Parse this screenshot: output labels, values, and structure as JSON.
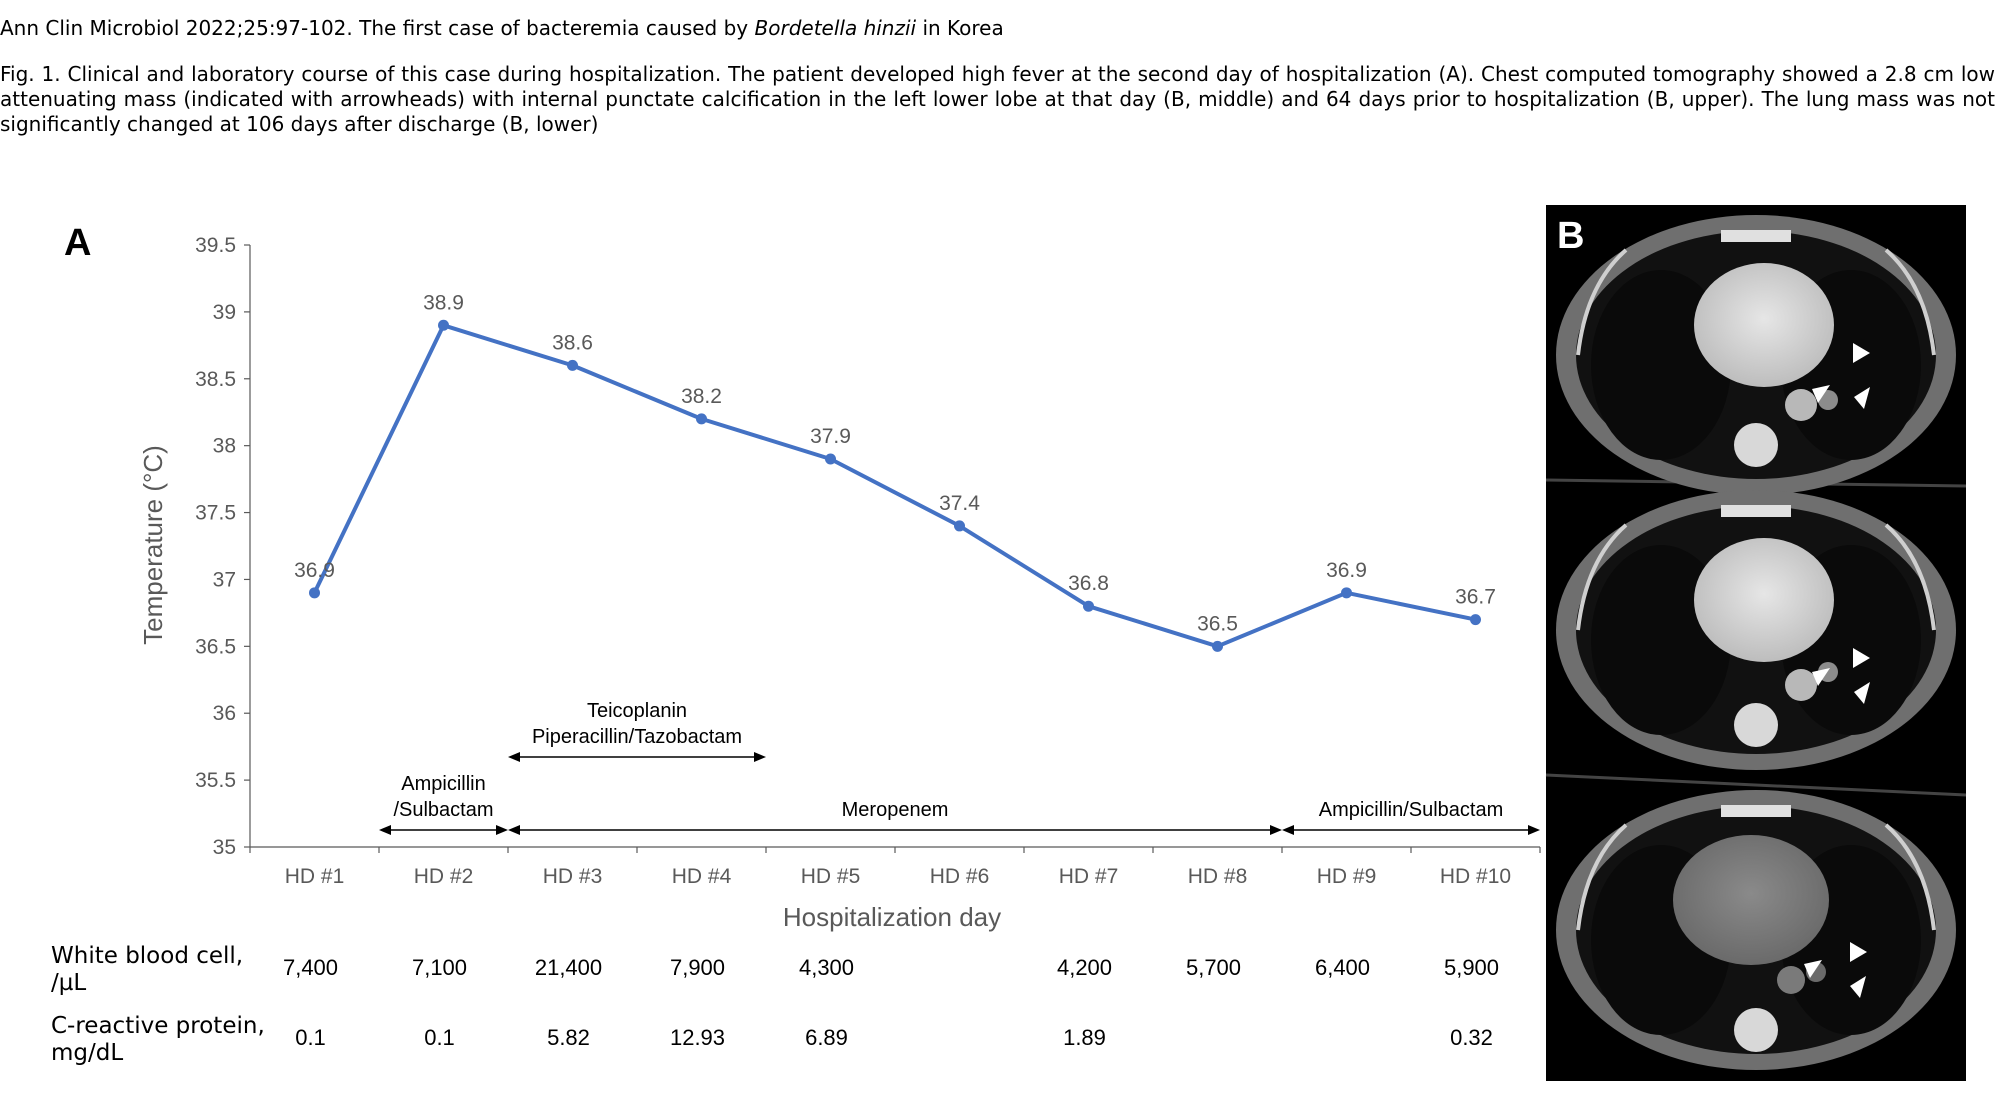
{
  "citation": {
    "prefix": "Ann Clin Microbiol 2022;25:97-102. The first case of bacteremia caused by ",
    "organism": "Bordetella hinzii",
    "suffix": " in Korea"
  },
  "caption": "Fig. 1. Clinical and laboratory course of this case during hospitalization. The patient developed high fever at the second day of hospitalization (A). Chest computed tomography showed a 2.8 cm low attenuating mass (indicated with arrowheads) with internal punctate calcification in the left lower lobe at that day (B, middle) and 64 days prior to hospitalization (B, upper). The lung mass was not significantly changed at 106 days after discharge (B, lower)",
  "panel_a_label": "A",
  "panel_b_label": "B",
  "chart_data": {
    "type": "line",
    "title": "",
    "xlabel": "Hospitalization day",
    "ylabel": "Temperature (°C)",
    "categories": [
      "HD #1",
      "HD #2",
      "HD #3",
      "HD #4",
      "HD #5",
      "HD #6",
      "HD #7",
      "HD #8",
      "HD #9",
      "HD #10"
    ],
    "values": [
      36.9,
      38.9,
      38.6,
      38.2,
      37.9,
      37.4,
      36.8,
      36.5,
      36.9,
      36.7
    ],
    "data_labels": [
      "36.9",
      "38.9",
      "38.6",
      "38.2",
      "37.9",
      "37.4",
      "36.8",
      "36.5",
      "36.9",
      "36.7"
    ],
    "ylim": [
      35,
      39.5
    ],
    "yticks": [
      "35",
      "35.5",
      "36",
      "36.5",
      "37",
      "37.5",
      "38",
      "38.5",
      "39",
      "39.5"
    ],
    "grid": false,
    "line_color": "#4472c4",
    "treatments": [
      {
        "lines": [
          "Ampicillin",
          "/Sulbactam"
        ],
        "from_day": 1.5,
        "to_day": 2.5
      },
      {
        "lines": [
          "Teicoplanin",
          "Piperacillin/Tazobactam"
        ],
        "from_day": 2.5,
        "to_day": 4.5
      },
      {
        "lines": [
          "Meropenem"
        ],
        "from_day": 2.5,
        "to_day": 8.5
      },
      {
        "lines": [
          "Ampicillin/Sulbactam"
        ],
        "from_day": 8.5,
        "to_day": 10.5
      }
    ]
  },
  "lab_table": {
    "rows": [
      {
        "label_lines": [
          "White blood cell,",
          "/µL"
        ],
        "values": [
          "7,400",
          "7,100",
          "21,400",
          "7,900",
          "4,300",
          "",
          "4,200",
          "5,700",
          "6,400",
          "5,900"
        ]
      },
      {
        "label_lines": [
          "C-reactive protein,",
          "mg/dL"
        ],
        "values": [
          "0.1",
          "0.1",
          "5.82",
          "12.93",
          "6.89",
          "",
          "1.89",
          "",
          "",
          "0.32"
        ]
      }
    ]
  },
  "ct_images": [
    {
      "name": "ct-upper",
      "arrowhead_count": 3
    },
    {
      "name": "ct-middle",
      "arrowhead_count": 3
    },
    {
      "name": "ct-lower",
      "arrowhead_count": 3
    }
  ]
}
